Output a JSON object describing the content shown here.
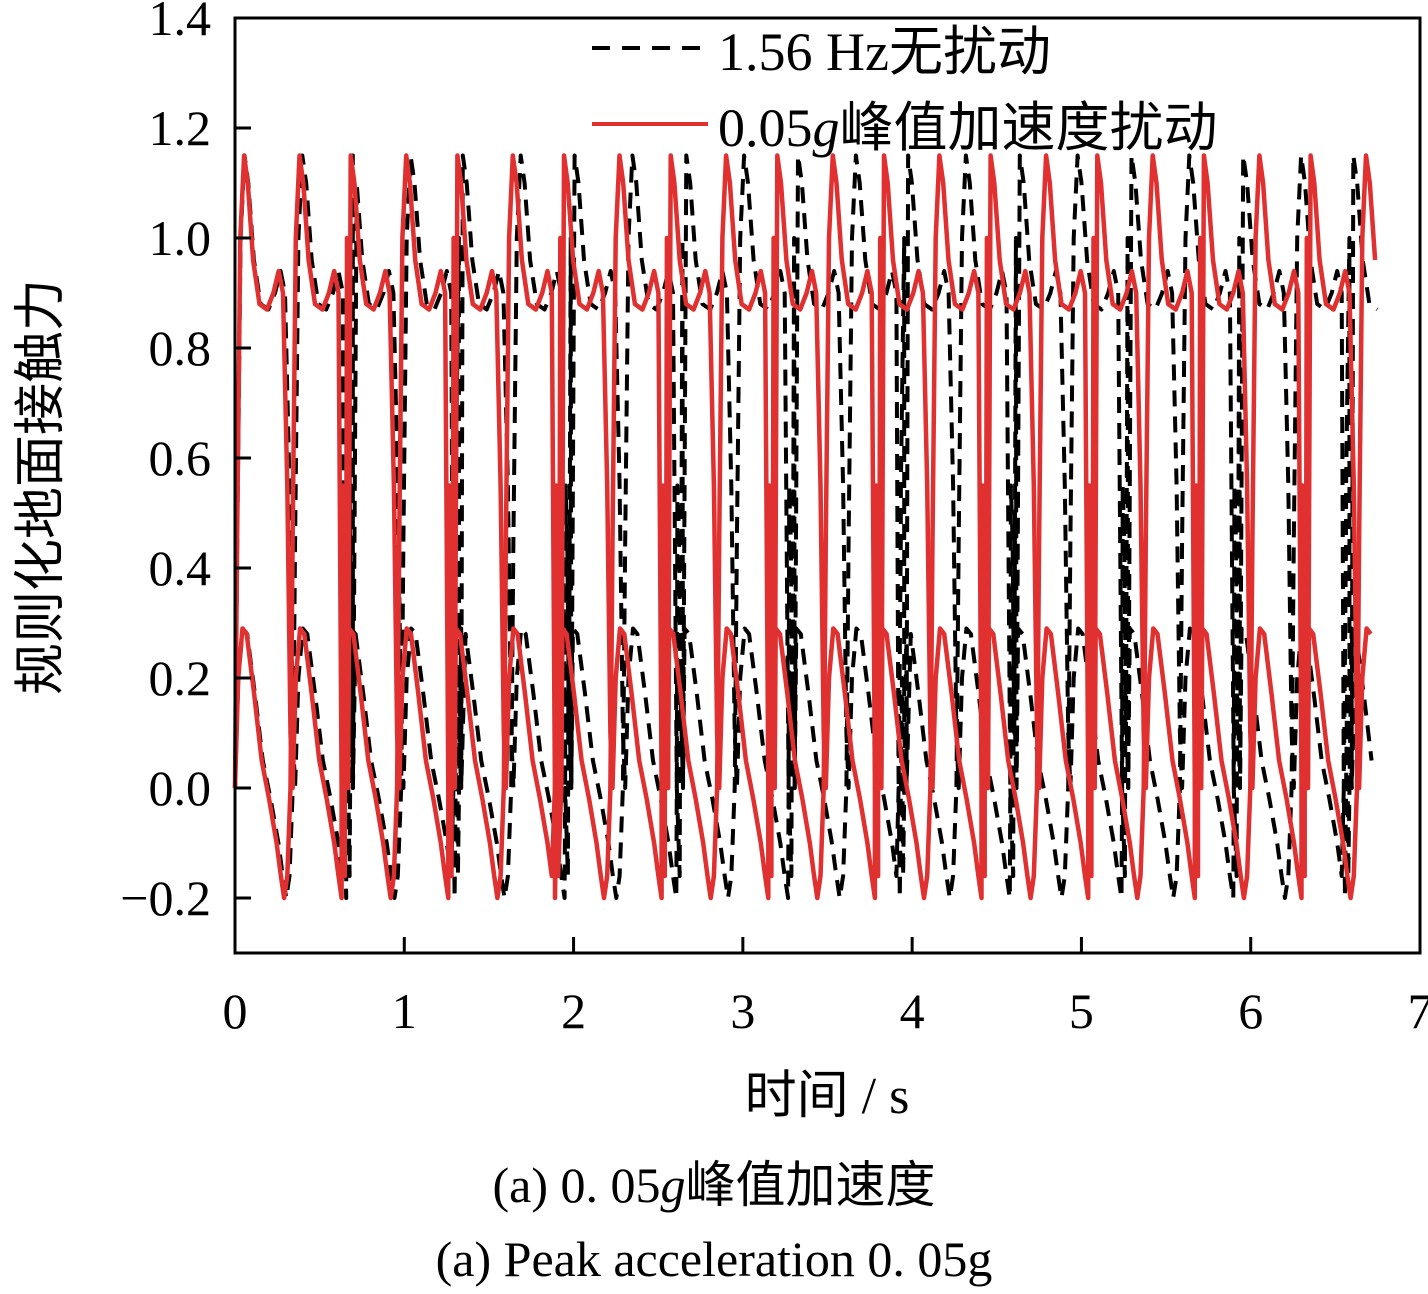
{
  "chart_data": {
    "type": "line",
    "xlabel": "时间 / s",
    "ylabel": "规则化地面接触力",
    "xlim": [
      0,
      7
    ],
    "ylim": [
      -0.3,
      1.4
    ],
    "x_ticks": [
      "0",
      "1",
      "2",
      "3",
      "4",
      "5",
      "6",
      "7"
    ],
    "y_ticks": [
      "−0.2",
      "0.0",
      "0.2",
      "0.4",
      "0.6",
      "0.8",
      "1.0",
      "1.2",
      "1.4"
    ],
    "y_tick_values": [
      -0.2,
      0.0,
      0.2,
      0.4,
      0.6,
      0.8,
      1.0,
      1.2,
      1.4
    ],
    "x_tick_values": [
      0,
      1,
      2,
      3,
      4,
      5,
      6,
      7
    ],
    "grid": false,
    "legend_position": "top-right",
    "series": [
      {
        "name": "1.56 Hz无扰动",
        "style": "dashed",
        "color": "#000000",
        "stance_start_times": [
          0.0,
          0.64,
          1.29,
          1.95,
          2.61,
          3.27,
          3.92,
          4.58,
          5.24,
          5.9,
          6.55
        ],
        "period": 0.657,
        "peak_value": 1.15,
        "mid_value": 0.88,
        "min_value": -0.2
      },
      {
        "name": "0.05g峰值加速度扰动",
        "style": "solid",
        "color": "#e03030",
        "stance_start_times": [
          0.0,
          0.63,
          1.26,
          1.89,
          2.52,
          3.15,
          3.78,
          4.41,
          5.04,
          5.67,
          6.3
        ],
        "period": 0.63,
        "peak_value": 1.15,
        "mid_value": 0.88,
        "min_value": -0.2
      }
    ]
  },
  "caption": {
    "line1_prefix": "(a) 0. 05",
    "line1_g": "g",
    "line1_suffix": "峰值加速度",
    "line2": "(a) Peak acceleration 0. 05g"
  },
  "legend": {
    "entry1": "1.56 Hz无扰动",
    "entry2_prefix": "0.05",
    "entry2_g": "g",
    "entry2_suffix": "峰值加速度扰动"
  }
}
